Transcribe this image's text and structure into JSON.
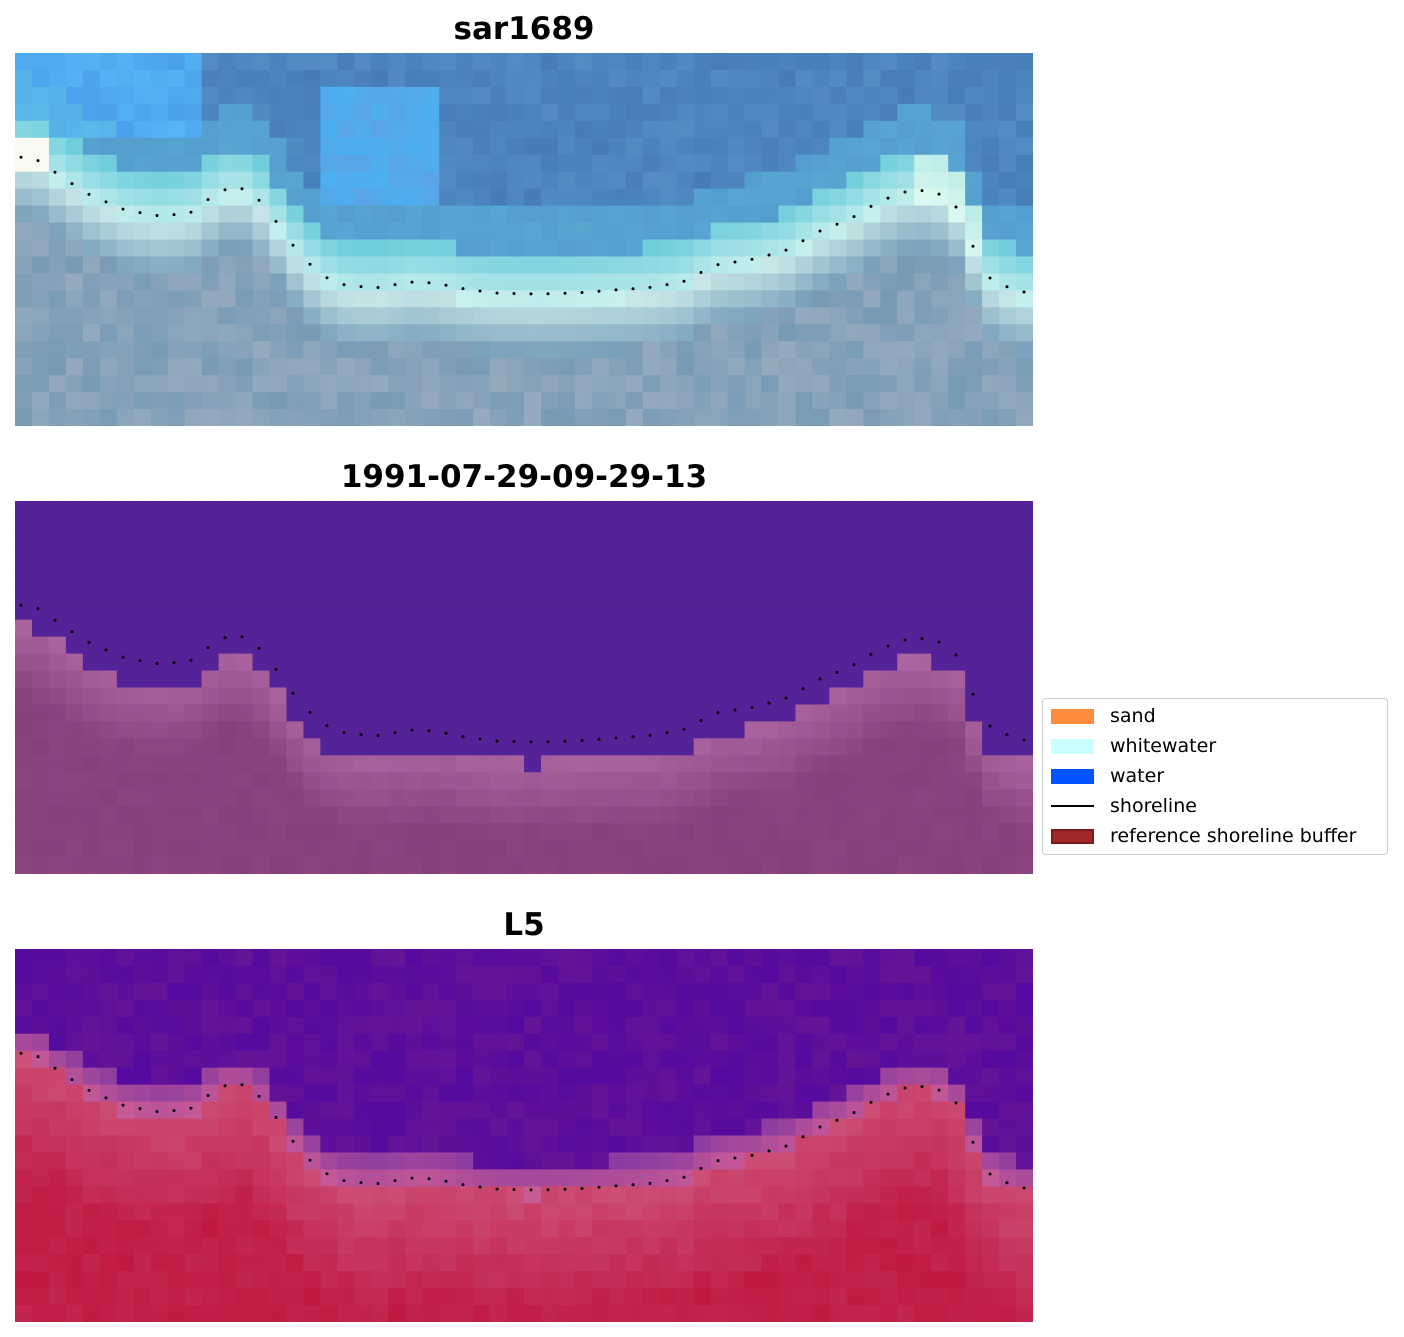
{
  "panels": [
    {
      "title": "sar1689"
    },
    {
      "title": "1991-07-29-09-29-13"
    },
    {
      "title": "L5"
    }
  ],
  "legend": {
    "items": [
      {
        "label": "sand",
        "kind": "patch",
        "color": "#ff8c3c"
      },
      {
        "label": "whitewater",
        "kind": "patch",
        "color": "#c8ffff"
      },
      {
        "label": "water",
        "kind": "patch",
        "color": "#0055ff"
      },
      {
        "label": "shoreline",
        "kind": "line",
        "color": "#000000"
      },
      {
        "label": "reference shoreline buffer",
        "kind": "patch",
        "color": "#a02828",
        "edge": "#7a1a1a"
      }
    ]
  },
  "colors": {
    "classification_water": "#532397",
    "classification_land": "#8b3f7f",
    "shoreline": "#000000"
  }
}
